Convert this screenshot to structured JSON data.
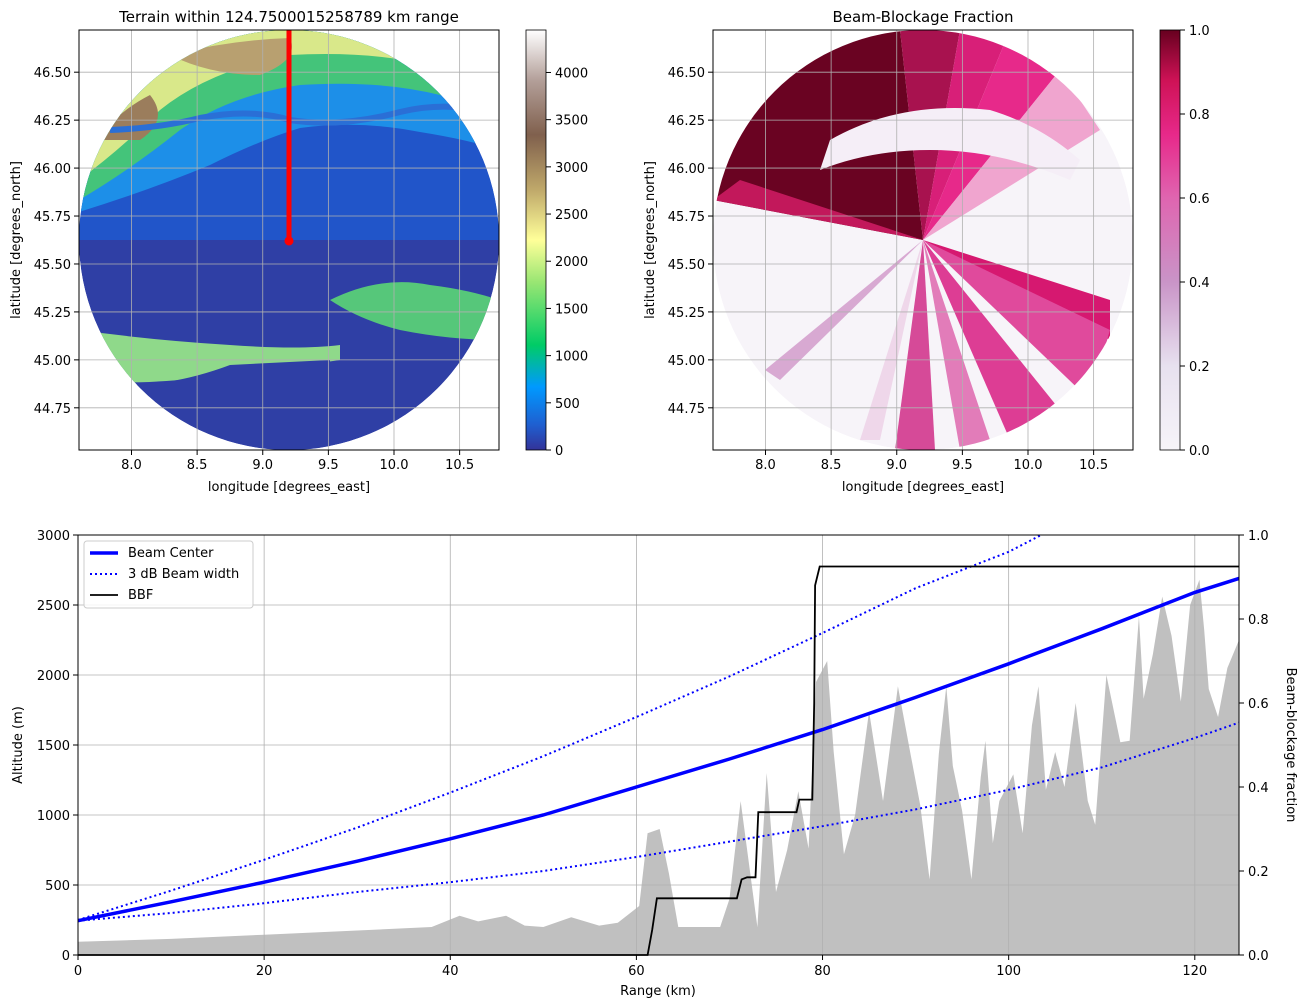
{
  "chart_data": [
    {
      "type": "heatmap",
      "title": "Terrain within 124.7500015258789 km range",
      "xlabel": "longitude [degrees_east]",
      "ylabel": "latitude [degrees_north]",
      "xlim": [
        7.6,
        10.8
      ],
      "ylim": [
        44.53,
        46.72
      ],
      "xticks": [
        "8.0",
        "8.5",
        "9.0",
        "9.5",
        "10.0",
        "10.5"
      ],
      "xtick_values": [
        8.0,
        8.5,
        9.0,
        9.5,
        10.0,
        10.5
      ],
      "yticks": [
        "44.75",
        "45.00",
        "45.25",
        "45.50",
        "45.75",
        "46.00",
        "46.25",
        "46.50"
      ],
      "ytick_values": [
        44.75,
        45.0,
        45.25,
        45.5,
        45.75,
        46.0,
        46.25,
        46.5
      ],
      "radar_center": [
        9.2,
        45.62
      ],
      "range_km": 124.75,
      "beam_azimuth_line": {
        "from": [
          9.2,
          45.62
        ],
        "to": [
          9.2,
          46.72
        ],
        "color": "#ff0000"
      },
      "colormap": "terrain",
      "colorbar": {
        "min": 0,
        "max": 4450,
        "ticks": [
          "0",
          "500",
          "1000",
          "1500",
          "2000",
          "2500",
          "3000",
          "3500",
          "4000"
        ],
        "tick_values": [
          0,
          500,
          1000,
          1500,
          2000,
          2500,
          3000,
          3500,
          4000
        ]
      },
      "grid": true
    },
    {
      "type": "heatmap",
      "title": "Beam-Blockage Fraction",
      "xlabel": "longitude [degrees_east]",
      "ylabel": "latitude [degrees_north]",
      "xlim": [
        7.6,
        10.8
      ],
      "ylim": [
        44.53,
        46.72
      ],
      "xticks": [
        "8.0",
        "8.5",
        "9.0",
        "9.5",
        "10.0",
        "10.5"
      ],
      "xtick_values": [
        8.0,
        8.5,
        9.0,
        9.5,
        10.0,
        10.5
      ],
      "yticks": [
        "44.75",
        "45.00",
        "45.25",
        "45.50",
        "45.75",
        "46.00",
        "46.25",
        "46.50"
      ],
      "ytick_values": [
        44.75,
        45.0,
        45.25,
        45.5,
        45.75,
        46.0,
        46.25,
        46.5
      ],
      "colormap": "PuRd",
      "colorbar": {
        "min": 0.0,
        "max": 1.0,
        "ticks": [
          "0.0",
          "0.2",
          "0.4",
          "0.6",
          "0.8",
          "1.0"
        ],
        "tick_values": [
          0.0,
          0.2,
          0.4,
          0.6,
          0.8,
          1.0
        ]
      },
      "grid": true
    },
    {
      "type": "line",
      "xlabel": "Range (km)",
      "ylabel": "Altitude (m)",
      "y2label": "Beam-blockage fraction",
      "xlim": [
        0,
        124.75
      ],
      "ylim": [
        0,
        3000
      ],
      "y2lim": [
        0,
        1.0
      ],
      "xticks": [
        "0",
        "20",
        "40",
        "60",
        "80",
        "100",
        "120"
      ],
      "xtick_values": [
        0,
        20,
        40,
        60,
        80,
        100,
        120
      ],
      "yticks": [
        "0",
        "500",
        "1000",
        "1500",
        "2000",
        "2500",
        "3000"
      ],
      "ytick_values": [
        0,
        500,
        1000,
        1500,
        2000,
        2500,
        3000
      ],
      "y2ticks": [
        "0.0",
        "0.2",
        "0.4",
        "0.6",
        "0.8",
        "1.0"
      ],
      "y2tick_values": [
        0.0,
        0.2,
        0.4,
        0.6,
        0.8,
        1.0
      ],
      "grid": true,
      "legend_position": "upper-left",
      "series": [
        {
          "name": "Beam Center",
          "style": "solid",
          "color": "#0000ff",
          "x": [
            0,
            10,
            20,
            30,
            40,
            50,
            60,
            70,
            80,
            90,
            100,
            110,
            120,
            124.75
          ],
          "y": [
            245,
            380,
            520,
            670,
            830,
            1000,
            1200,
            1400,
            1610,
            1840,
            2080,
            2330,
            2590,
            2690
          ]
        },
        {
          "name": "3 dB Beam width",
          "style": "dotted",
          "color": "#0000ff",
          "x": [
            0,
            10,
            20,
            30,
            40,
            50,
            60,
            70,
            80,
            90,
            100,
            103.5
          ],
          "y": [
            250,
            460,
            680,
            910,
            1160,
            1420,
            1700,
            1990,
            2300,
            2620,
            2880,
            3000
          ]
        },
        {
          "name": "",
          "style": "dotted",
          "color": "#0000ff",
          "x": [
            0,
            10,
            20,
            30,
            40,
            50,
            60,
            70,
            80,
            90,
            100,
            110,
            120,
            124.75
          ],
          "y": [
            245,
            300,
            370,
            450,
            520,
            600,
            700,
            810,
            920,
            1040,
            1180,
            1340,
            1550,
            1660
          ]
        },
        {
          "name": "BBF",
          "style": "solid",
          "color": "#000000",
          "axis": "y2",
          "x": [
            0,
            61.2,
            61.7,
            62.2,
            70.8,
            71.3,
            71.9,
            72.8,
            73.1,
            77.2,
            77.5,
            78.9,
            79.1,
            79.2,
            79.7,
            124.75
          ],
          "y": [
            0.0,
            0.0,
            0.06,
            0.135,
            0.135,
            0.18,
            0.185,
            0.185,
            0.34,
            0.34,
            0.37,
            0.37,
            0.6,
            0.88,
            0.925,
            0.925
          ]
        },
        {
          "name": "Terrain",
          "style": "fill",
          "color": "#c0c0c0",
          "x": [
            0,
            10,
            20,
            30,
            38,
            41,
            43,
            46,
            48,
            50,
            53,
            56,
            58,
            60.3,
            61.2,
            62.5,
            63.5,
            64.5,
            65.5,
            69,
            70,
            71.2,
            72.5,
            73,
            74,
            75,
            76.2,
            77.4,
            78.5,
            79.3,
            80.5,
            81.2,
            82.3,
            83.5,
            85,
            86.5,
            88.1,
            89.5,
            90.5,
            91.5,
            92.5,
            93.3,
            94,
            95,
            96,
            97,
            97.5,
            98.3,
            99,
            100.5,
            101.5,
            102.5,
            103.2,
            104,
            105,
            106,
            107.2,
            108.5,
            109.3,
            110.5,
            112,
            113,
            114,
            114.5,
            115.5,
            116.5,
            117.5,
            118.5,
            119.5,
            120.5,
            121,
            121.5,
            122.5,
            123.5,
            124.75
          ],
          "y": [
            95,
            115,
            145,
            175,
            200,
            280,
            240,
            280,
            210,
            200,
            270,
            210,
            230,
            350,
            870,
            900,
            580,
            200,
            200,
            200,
            400,
            1100,
            450,
            200,
            1300,
            450,
            750,
            1170,
            760,
            1950,
            2100,
            1450,
            720,
            1000,
            1740,
            1100,
            1920,
            1420,
            1070,
            540,
            1440,
            1920,
            1350,
            1030,
            540,
            1270,
            1530,
            800,
            1100,
            1290,
            870,
            1640,
            1920,
            1180,
            1450,
            1200,
            1800,
            1100,
            930,
            2000,
            1520,
            1530,
            2420,
            1830,
            2150,
            2560,
            2280,
            1810,
            2500,
            2680,
            2330,
            1900,
            1700,
            2050,
            2250
          ]
        }
      ]
    }
  ]
}
